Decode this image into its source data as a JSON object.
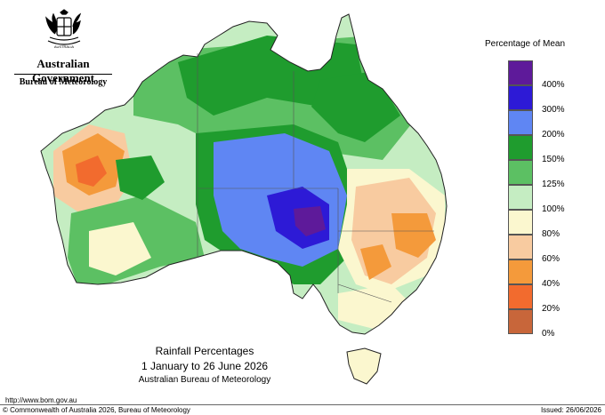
{
  "logo": {
    "government": "Australian Government",
    "bureau": "Bureau of Meteorology",
    "crest_icon": "coat-of-arms-icon"
  },
  "map": {
    "subject": "Rainfall percentage of mean, Australia"
  },
  "legend": {
    "title": "Percentage of Mean",
    "items": [
      {
        "label": "400%",
        "color": "#5e1a9a"
      },
      {
        "label": "300%",
        "color": "#2d1ad6"
      },
      {
        "label": "200%",
        "color": "#5f86f3"
      },
      {
        "label": "150%",
        "color": "#1f9c2e"
      },
      {
        "label": "125%",
        "color": "#5cc063"
      },
      {
        "label": "100%",
        "color": "#c5edc2"
      },
      {
        "label": "80%",
        "color": "#fbf7cf"
      },
      {
        "label": "60%",
        "color": "#f8cba0"
      },
      {
        "label": "40%",
        "color": "#f49a3b"
      },
      {
        "label": "20%",
        "color": "#f26b2e"
      },
      {
        "label": "0%",
        "color": "#c8663a"
      }
    ]
  },
  "caption": {
    "line1": "Rainfall Percentages",
    "line2": "1 January to 26 June 2026",
    "line3": "Australian Bureau of Meteorology"
  },
  "footer": {
    "url": "http://www.bom.gov.au",
    "copyright": "© Commonwealth of Australia 2026, Bureau of Meteorology",
    "issued": "Issued: 26/06/2026"
  }
}
